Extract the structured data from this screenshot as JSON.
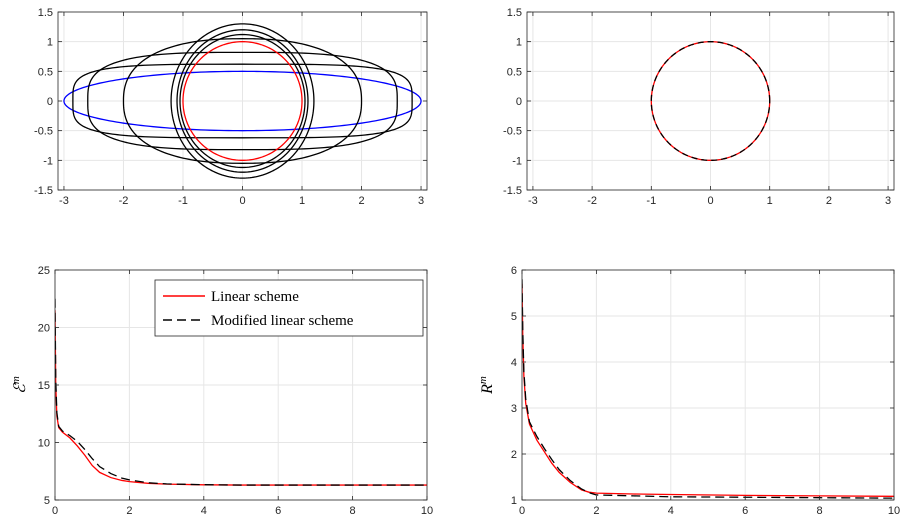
{
  "chart_data": [
    {
      "id": "top-left",
      "type": "line",
      "xlim": [
        -3.1,
        3.1
      ],
      "ylim": [
        -1.5,
        1.5
      ],
      "xticks": [
        -3,
        -2,
        -1,
        0,
        1,
        2,
        3
      ],
      "yticks": [
        -1.5,
        -1,
        -0.5,
        0,
        0.5,
        1,
        1.5
      ],
      "xtick_labels": [
        "-3",
        "-2",
        "-1",
        "0",
        "1",
        "2",
        "3"
      ],
      "ytick_labels": [
        "-1.5",
        "-1",
        "-0.5",
        "0",
        "0.5",
        "1",
        "1.5"
      ],
      "grid": true,
      "equal_aspect": true,
      "curves": [
        {
          "kind": "ellipse",
          "a": 3.0,
          "b": 0.5,
          "color": "#0000ff",
          "role": "initial"
        },
        {
          "kind": "superellipse",
          "a": 2.85,
          "b": 0.62,
          "p": 4,
          "color": "#000000",
          "role": "intermediate"
        },
        {
          "kind": "superellipse",
          "a": 2.6,
          "b": 0.82,
          "p": 3.2,
          "color": "#000000",
          "role": "intermediate"
        },
        {
          "kind": "superellipse",
          "a": 2.0,
          "b": 1.05,
          "p": 2.4,
          "color": "#000000",
          "role": "intermediate"
        },
        {
          "kind": "ellipse",
          "a": 1.2,
          "b": 1.3,
          "color": "#000000",
          "role": "intermediate"
        },
        {
          "kind": "ellipse",
          "a": 1.1,
          "b": 1.2,
          "color": "#000000",
          "role": "intermediate"
        },
        {
          "kind": "ellipse",
          "a": 1.05,
          "b": 1.12,
          "color": "#000000",
          "role": "intermediate"
        },
        {
          "kind": "ellipse",
          "a": 1.0,
          "b": 1.0,
          "color": "#ff0000",
          "role": "final"
        }
      ]
    },
    {
      "id": "top-right",
      "type": "line",
      "xlim": [
        -3.1,
        3.1
      ],
      "ylim": [
        -1.5,
        1.5
      ],
      "xticks": [
        -3,
        -2,
        -1,
        0,
        1,
        2,
        3
      ],
      "yticks": [
        -1.5,
        -1,
        -0.5,
        0,
        0.5,
        1,
        1.5
      ],
      "xtick_labels": [
        "-3",
        "-2",
        "-1",
        "0",
        "1",
        "2",
        "3"
      ],
      "ytick_labels": [
        "-1.5",
        "-1",
        "-0.5",
        "0",
        "0.5",
        "1",
        "1.5"
      ],
      "grid": true,
      "equal_aspect": true,
      "curves": [
        {
          "kind": "ellipse",
          "a": 1.0,
          "b": 1.0,
          "color": "#ff0000",
          "dash": false
        },
        {
          "kind": "ellipse",
          "a": 1.0,
          "b": 1.0,
          "color": "#000000",
          "dash": true
        }
      ]
    },
    {
      "id": "bottom-left",
      "type": "line",
      "xlim": [
        0,
        10
      ],
      "ylim": [
        5,
        25
      ],
      "xticks": [
        0,
        2,
        4,
        6,
        8,
        10
      ],
      "yticks": [
        5,
        10,
        15,
        20,
        25
      ],
      "xtick_labels": [
        "0",
        "2",
        "4",
        "6",
        "8",
        "10"
      ],
      "ytick_labels": [
        "5",
        "10",
        "15",
        "20",
        "25"
      ],
      "ylabel": "ℰ",
      "ylabel_sup": "m",
      "grid": true,
      "legend": {
        "position": "top-right",
        "entries": [
          "Linear scheme",
          "Modified linear scheme"
        ]
      },
      "series": [
        {
          "name": "Linear scheme",
          "color": "#ff0000",
          "dash": false,
          "x": [
            0,
            0.02,
            0.05,
            0.1,
            0.2,
            0.4,
            0.6,
            0.8,
            1.0,
            1.2,
            1.5,
            1.8,
            2.0,
            2.5,
            3.0,
            4.0,
            5.0,
            6.0,
            8.0,
            10.0
          ],
          "y": [
            21.5,
            15.0,
            12.3,
            11.3,
            10.9,
            10.4,
            9.7,
            8.9,
            8.0,
            7.4,
            6.95,
            6.7,
            6.6,
            6.45,
            6.38,
            6.32,
            6.3,
            6.3,
            6.3,
            6.3
          ]
        },
        {
          "name": "Modified linear scheme",
          "color": "#000000",
          "dash": true,
          "x": [
            0,
            0.02,
            0.05,
            0.1,
            0.2,
            0.4,
            0.6,
            0.8,
            1.0,
            1.2,
            1.5,
            1.8,
            2.0,
            2.5,
            3.0,
            4.0,
            5.0,
            6.0,
            8.0,
            10.0
          ],
          "y": [
            22.5,
            15.5,
            12.6,
            11.4,
            11.0,
            10.6,
            10.1,
            9.4,
            8.6,
            7.9,
            7.3,
            6.9,
            6.75,
            6.5,
            6.4,
            6.33,
            6.3,
            6.3,
            6.3,
            6.3
          ]
        }
      ]
    },
    {
      "id": "bottom-right",
      "type": "line",
      "xlim": [
        0,
        10
      ],
      "ylim": [
        1,
        6
      ],
      "xticks": [
        0,
        2,
        4,
        6,
        8,
        10
      ],
      "yticks": [
        1,
        2,
        3,
        4,
        5,
        6
      ],
      "xtick_labels": [
        "0",
        "2",
        "4",
        "6",
        "8",
        "10"
      ],
      "ytick_labels": [
        "1",
        "2",
        "3",
        "4",
        "5",
        "6"
      ],
      "ylabel": "R",
      "ylabel_sup": "m",
      "grid": true,
      "series": [
        {
          "name": "Linear scheme",
          "color": "#ff0000",
          "dash": false,
          "x": [
            0,
            0.02,
            0.05,
            0.1,
            0.2,
            0.4,
            0.6,
            0.8,
            1.0,
            1.3,
            1.6,
            1.8,
            2.0,
            3.0,
            4.0,
            6.0,
            8.0,
            10.0
          ],
          "y": [
            5.7,
            4.6,
            3.7,
            3.1,
            2.65,
            2.3,
            2.05,
            1.8,
            1.6,
            1.38,
            1.22,
            1.17,
            1.15,
            1.13,
            1.12,
            1.1,
            1.09,
            1.08
          ]
        },
        {
          "name": "Modified linear scheme",
          "color": "#000000",
          "dash": true,
          "x": [
            0,
            0.02,
            0.05,
            0.1,
            0.2,
            0.4,
            0.6,
            0.8,
            1.0,
            1.3,
            1.6,
            1.8,
            2.0,
            3.0,
            4.0,
            6.0,
            8.0,
            10.0
          ],
          "y": [
            5.8,
            4.7,
            3.8,
            3.2,
            2.7,
            2.38,
            2.12,
            1.88,
            1.66,
            1.42,
            1.24,
            1.16,
            1.11,
            1.09,
            1.07,
            1.06,
            1.05,
            1.04
          ]
        }
      ]
    }
  ]
}
